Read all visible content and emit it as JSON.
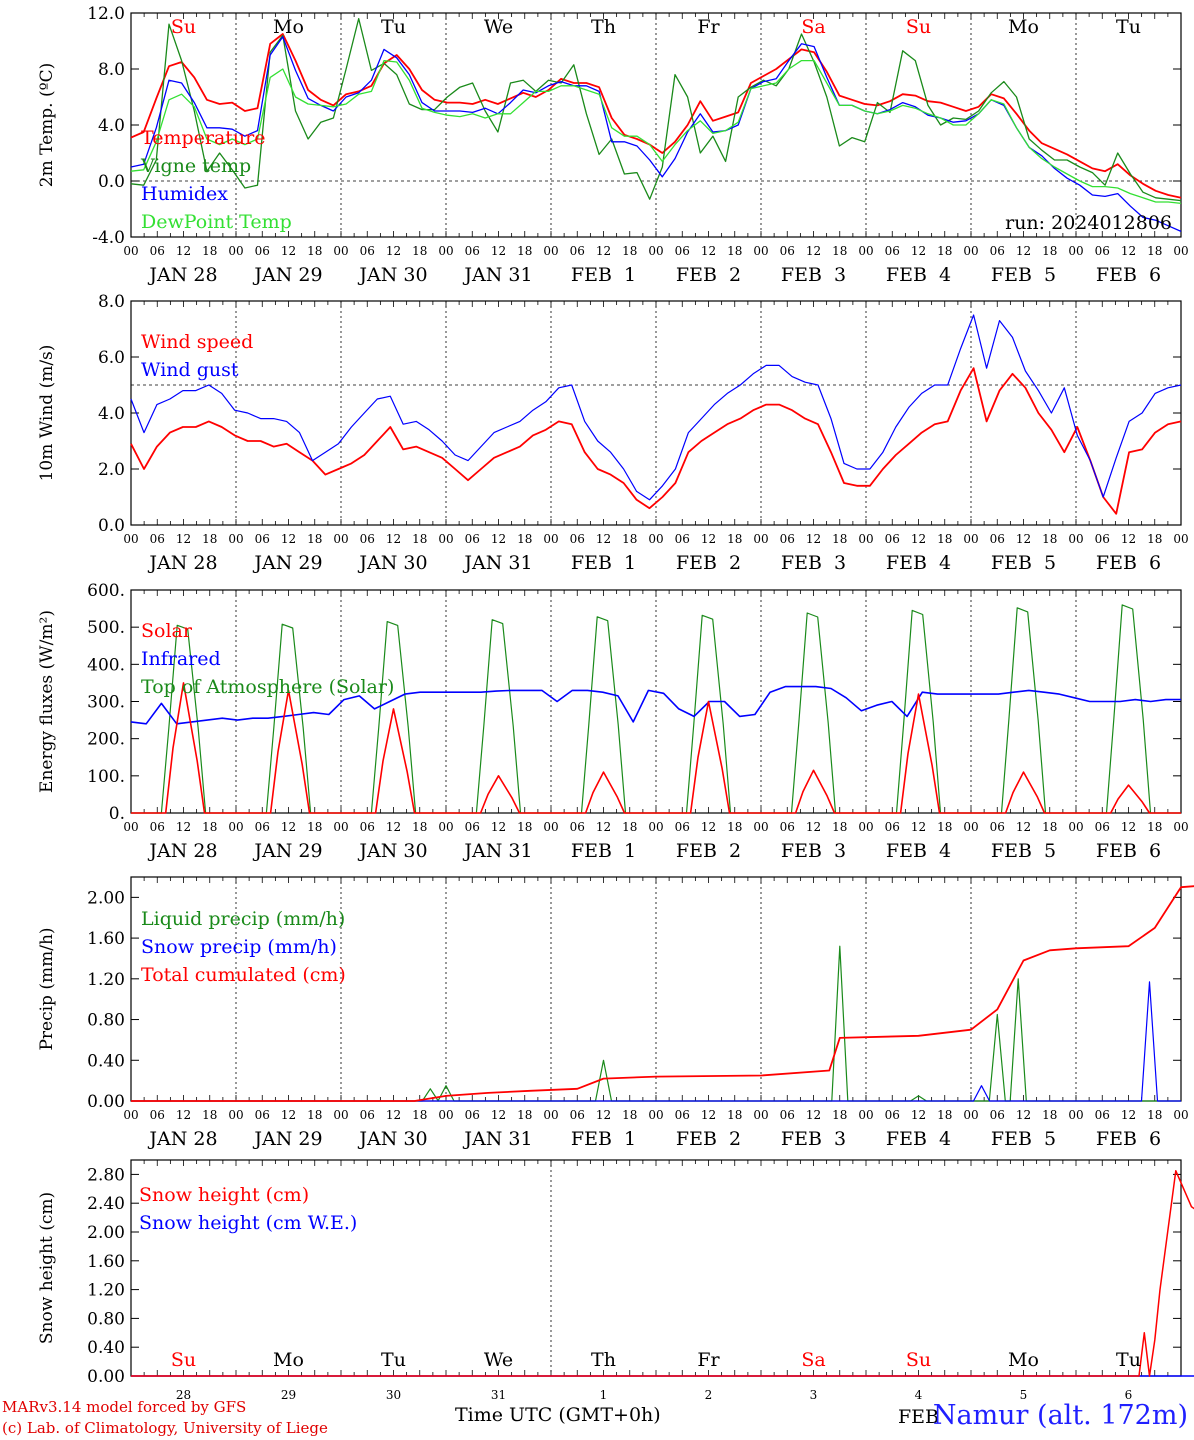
{
  "colors": {
    "red": "#ff0000",
    "green": "#1a8a1a",
    "blue": "#0000ff",
    "lightgreen": "#33e033",
    "darkred": "#ff0000",
    "credit": "#e00000",
    "location": "#2020ff"
  },
  "time_axis": {
    "hour_ticks": [
      "00",
      "06",
      "12",
      "18"
    ],
    "date_labels": [
      "JAN 28",
      "JAN 29",
      "JAN 30",
      "JAN 31",
      "FEB  1",
      "FEB  2",
      "FEB  3",
      "FEB  4",
      "FEB  5",
      "FEB  6"
    ],
    "weekdays": [
      "Su",
      "Mo",
      "Tu",
      "We",
      "Th",
      "Fr",
      "Sa",
      "Su",
      "Mo",
      "Tu"
    ],
    "weekend_flags": [
      true,
      false,
      false,
      false,
      false,
      false,
      true,
      true,
      false,
      false
    ],
    "day_numbers": [
      "28",
      "29",
      "30",
      "31",
      "1",
      "2",
      "3",
      "4",
      "5",
      "6"
    ],
    "feb_label": "FEB"
  },
  "footer": {
    "model_line": "MARv3.14 model forced by GFS",
    "credit_line": "(c) Lab. of Climatology, University of Liege",
    "axis_title": "Time UTC (GMT+0h)",
    "location": "Namur (alt. 172m)"
  },
  "chart_data": [
    {
      "type": "line",
      "ylabel": "2m Temp. (ºC)",
      "ylim": [
        -4,
        12
      ],
      "yticks": [
        "12.0",
        "8.0",
        "4.0",
        "0.0",
        "-4.0"
      ],
      "annotation": "run: 2024012806",
      "reference_line": 0,
      "x": "hours since JAN 28 00 UTC, 3-hourly",
      "series": [
        {
          "name": "Temperature",
          "color": "#ff0000",
          "values": [
            3.1,
            3.5,
            5.9,
            8.2,
            8.5,
            7.4,
            5.8,
            5.5,
            5.6,
            5.0,
            5.2,
            9.8,
            10.5,
            8.6,
            6.5,
            5.8,
            5.4,
            6.2,
            6.4,
            6.8,
            8.4,
            9.0,
            8.0,
            6.5,
            5.8,
            5.6,
            5.6,
            5.5,
            5.8,
            5.5,
            5.9,
            6.3,
            6.0,
            6.5,
            7.3,
            7.0,
            7.0,
            6.7,
            4.5,
            3.3,
            3.0,
            2.6,
            2.0,
            2.8,
            4.0,
            5.7,
            4.3,
            4.6,
            4.9,
            7.0,
            7.5,
            8.0,
            8.7,
            9.4,
            9.2,
            7.8,
            6.1,
            5.8,
            5.5,
            5.4,
            5.7,
            6.2,
            6.1,
            5.7,
            5.6,
            5.3,
            5.0,
            5.3,
            6.2,
            5.9,
            4.8,
            3.6,
            2.7,
            2.3,
            1.9,
            1.4,
            0.9,
            0.7,
            1.2,
            0.4,
            -0.2,
            -0.7,
            -1.0,
            -1.2
          ]
        },
        {
          "name": "Vigne temp",
          "color": "#1a8a1a",
          "values": [
            -0.2,
            -0.3,
            1.5,
            11.2,
            8.6,
            5.0,
            0.7,
            2.0,
            0.8,
            -0.5,
            -0.3,
            9.2,
            10.4,
            5.0,
            3.0,
            4.2,
            4.5,
            8.0,
            11.6,
            7.9,
            8.4,
            7.6,
            5.5,
            5.1,
            5.1,
            6.0,
            6.7,
            7.0,
            5.0,
            3.5,
            7.0,
            7.2,
            6.4,
            7.2,
            7.0,
            8.3,
            4.8,
            1.9,
            3.0,
            0.5,
            0.6,
            -1.3,
            1.0,
            7.6,
            6.0,
            2.0,
            3.2,
            1.4,
            6.0,
            6.7,
            7.2,
            6.8,
            8.0,
            10.5,
            8.5,
            6.0,
            2.5,
            3.1,
            2.8,
            5.6,
            4.9,
            9.3,
            8.6,
            5.4,
            4.0,
            4.5,
            4.4,
            5.0,
            6.3,
            7.1,
            6.0,
            3.0,
            2.2,
            1.5,
            1.5,
            1.0,
            0.6,
            -0.3,
            2.0,
            0.5,
            -0.8,
            -1.2,
            -1.3,
            -1.4
          ]
        },
        {
          "name": "Humidex",
          "color": "#0000ff",
          "values": [
            1.0,
            1.2,
            3.8,
            7.2,
            7.0,
            5.6,
            3.8,
            3.8,
            3.7,
            3.2,
            3.6,
            9.0,
            10.3,
            7.9,
            5.9,
            5.4,
            5.0,
            6.0,
            6.3,
            7.2,
            9.4,
            8.8,
            7.6,
            5.6,
            5.0,
            5.0,
            5.0,
            4.9,
            5.2,
            4.8,
            5.6,
            6.5,
            6.3,
            6.8,
            7.1,
            6.8,
            6.8,
            6.4,
            2.8,
            2.8,
            2.5,
            1.5,
            0.3,
            1.6,
            3.5,
            4.8,
            3.5,
            3.6,
            4.0,
            6.6,
            7.1,
            7.3,
            8.6,
            9.8,
            9.6,
            7.4,
            5.4,
            5.4,
            5.0,
            4.8,
            5.1,
            5.6,
            5.3,
            4.7,
            4.5,
            4.2,
            4.3,
            4.8,
            5.8,
            5.4,
            3.8,
            2.4,
            1.8,
            0.9,
            0.2,
            -0.3,
            -1.0,
            -1.1,
            -0.9,
            -1.8,
            -2.6,
            -2.8,
            -3.2,
            -3.6
          ]
        },
        {
          "name": "DewPoint Temp",
          "color": "#33e033",
          "values": [
            0.7,
            0.8,
            2.8,
            5.8,
            6.2,
            5.3,
            3.0,
            2.6,
            3.0,
            2.6,
            3.0,
            7.4,
            8.0,
            6.0,
            5.5,
            5.4,
            5.3,
            5.5,
            6.2,
            6.4,
            8.6,
            8.5,
            7.2,
            5.2,
            4.9,
            4.7,
            4.6,
            4.8,
            4.5,
            4.8,
            4.8,
            5.6,
            6.4,
            6.4,
            6.8,
            6.8,
            6.5,
            6.2,
            3.8,
            3.2,
            3.2,
            2.6,
            1.4,
            2.6,
            3.6,
            4.3,
            3.4,
            3.6,
            4.2,
            6.6,
            6.8,
            7.0,
            8.0,
            8.6,
            8.6,
            7.0,
            5.4,
            5.4,
            5.0,
            4.8,
            5.0,
            5.4,
            5.2,
            4.8,
            4.5,
            4.0,
            4.0,
            4.8,
            5.8,
            5.5,
            3.8,
            2.4,
            1.6,
            1.0,
            0.5,
            0.0,
            -0.4,
            -0.4,
            -0.5,
            -0.9,
            -1.2,
            -1.5,
            -1.5,
            -1.6
          ]
        }
      ]
    },
    {
      "type": "line",
      "ylabel": "10m Wind (m/s)",
      "ylim": [
        0,
        8
      ],
      "yticks": [
        "8.0",
        "6.0",
        "4.0",
        "2.0",
        "0.0"
      ],
      "reference_line": 5,
      "series": [
        {
          "name": "Wind speed",
          "color": "#ff0000",
          "values": [
            2.9,
            2.0,
            2.8,
            3.3,
            3.5,
            3.5,
            3.7,
            3.5,
            3.2,
            3.0,
            3.0,
            2.8,
            2.9,
            2.6,
            2.3,
            1.8,
            2.0,
            2.2,
            2.5,
            3.0,
            3.5,
            2.7,
            2.8,
            2.6,
            2.4,
            2.0,
            1.6,
            2.0,
            2.4,
            2.6,
            2.8,
            3.2,
            3.4,
            3.7,
            3.6,
            2.6,
            2.0,
            1.8,
            1.5,
            0.9,
            0.6,
            1.0,
            1.5,
            2.6,
            3.0,
            3.3,
            3.6,
            3.8,
            4.1,
            4.3,
            4.3,
            4.1,
            3.8,
            3.6,
            2.6,
            1.5,
            1.4,
            1.4,
            2.0,
            2.5,
            2.9,
            3.3,
            3.6,
            3.7,
            4.8,
            5.6,
            3.7,
            4.8,
            5.4,
            4.9,
            4.0,
            3.4,
            2.6,
            3.5,
            2.3,
            1.0,
            0.4,
            2.6,
            2.7,
            3.3,
            3.6,
            3.7
          ]
        },
        {
          "name": "Wind gust",
          "color": "#0000ff",
          "values": [
            4.5,
            3.3,
            4.3,
            4.5,
            4.8,
            4.8,
            5.0,
            4.7,
            4.1,
            4.0,
            3.8,
            3.8,
            3.7,
            3.3,
            2.3,
            2.6,
            2.9,
            3.5,
            4.0,
            4.5,
            4.6,
            3.6,
            3.7,
            3.4,
            3.0,
            2.5,
            2.3,
            2.8,
            3.3,
            3.5,
            3.7,
            4.1,
            4.4,
            4.9,
            5.0,
            3.7,
            3.0,
            2.6,
            2.0,
            1.2,
            0.9,
            1.4,
            2.0,
            3.3,
            3.8,
            4.3,
            4.7,
            5.0,
            5.4,
            5.7,
            5.7,
            5.3,
            5.1,
            5.0,
            3.8,
            2.2,
            2.0,
            2.0,
            2.6,
            3.5,
            4.2,
            4.7,
            5.0,
            5.0,
            6.3,
            7.5,
            5.6,
            7.3,
            6.7,
            5.5,
            4.8,
            4.0,
            4.9,
            3.2,
            2.3,
            1.0,
            2.4,
            3.7,
            4.0,
            4.7,
            4.9,
            5.0
          ]
        }
      ]
    },
    {
      "type": "line",
      "ylabel": "Energy fluxes (W/m²)",
      "ylim": [
        0,
        600
      ],
      "yticks": [
        "600.",
        "500.",
        "400.",
        "300.",
        "200.",
        "100.",
        "0."
      ],
      "series": [
        {
          "name": "Solar",
          "color": "#ff0000",
          "peaks": [
            350,
            330,
            280,
            100,
            110,
            300,
            115,
            320,
            110,
            75
          ]
        },
        {
          "name": "Infrared",
          "color": "#0000ff",
          "values": [
            245,
            240,
            295,
            240,
            245,
            250,
            255,
            250,
            255,
            255,
            260,
            265,
            270,
            265,
            305,
            315,
            280,
            300,
            320,
            325,
            325,
            325,
            325,
            325,
            328,
            330,
            330,
            330,
            300,
            330,
            330,
            325,
            315,
            245,
            330,
            322,
            280,
            260,
            300,
            300,
            260,
            265,
            325,
            340,
            340,
            340,
            335,
            310,
            275,
            290,
            300,
            260,
            325,
            320,
            320,
            320,
            320,
            320,
            325,
            330,
            325,
            320,
            310,
            300,
            300,
            300,
            305,
            300,
            305,
            305
          ]
        },
        {
          "name": "Top of Atmosphere (Solar)",
          "color": "#1a8a1a",
          "peaks": [
            505,
            508,
            515,
            520,
            528,
            532,
            538,
            545,
            552,
            560
          ]
        }
      ]
    },
    {
      "type": "line",
      "ylabel": "Precip (mm/h)",
      "ylim": [
        0,
        2.2
      ],
      "yticks": [
        "2.00",
        "1.60",
        "1.20",
        "0.80",
        "0.40",
        "0.00"
      ],
      "series": [
        {
          "name": "Liquid precip (mm/h)",
          "color": "#1a8a1a",
          "spikes": [
            [
              2.85,
              0.12
            ],
            [
              3.0,
              0.15
            ],
            [
              4.5,
              0.4
            ],
            [
              6.75,
              1.52
            ],
            [
              8.25,
              0.85
            ],
            [
              8.45,
              1.2
            ],
            [
              7.5,
              0.05
            ]
          ]
        },
        {
          "name": "Snow precip (mm/h)",
          "color": "#0000ff",
          "spikes": [
            [
              8.1,
              0.15
            ],
            [
              9.7,
              1.17
            ]
          ]
        },
        {
          "name": "Total cumulated (cm)",
          "color": "#ff0000",
          "points": [
            [
              0,
              0
            ],
            [
              2.7,
              0
            ],
            [
              3.0,
              0.05
            ],
            [
              3.4,
              0.08
            ],
            [
              3.8,
              0.1
            ],
            [
              4.25,
              0.12
            ],
            [
              4.5,
              0.22
            ],
            [
              5,
              0.24
            ],
            [
              6,
              0.25
            ],
            [
              6.65,
              0.3
            ],
            [
              6.75,
              0.62
            ],
            [
              7.5,
              0.64
            ],
            [
              8.0,
              0.7
            ],
            [
              8.25,
              0.9
            ],
            [
              8.5,
              1.38
            ],
            [
              8.75,
              1.48
            ],
            [
              9,
              1.5
            ],
            [
              9.5,
              1.52
            ],
            [
              9.75,
              1.7
            ],
            [
              10,
              2.1
            ],
            [
              10.25,
              2.12
            ]
          ]
        }
      ]
    },
    {
      "type": "line",
      "ylabel": "Snow height (cm)",
      "ylim": [
        0,
        3.0
      ],
      "yticks": [
        "2.80",
        "2.40",
        "2.00",
        "1.60",
        "1.20",
        "0.80",
        "0.40",
        "0.00"
      ],
      "series": [
        {
          "name": "Snow height (cm)",
          "color": "#ff0000",
          "points": [
            [
              0,
              0
            ],
            [
              9.6,
              0
            ],
            [
              9.65,
              0.6
            ],
            [
              9.7,
              0
            ],
            [
              9.75,
              0.5
            ],
            [
              9.8,
              1.2
            ],
            [
              9.95,
              2.85
            ],
            [
              10.1,
              2.35
            ],
            [
              10.25,
              2.2
            ]
          ]
        },
        {
          "name": "Snow height (cm W.E.)",
          "color": "#0000ff",
          "points": [
            [
              0,
              0
            ],
            [
              10.25,
              0
            ]
          ]
        }
      ]
    }
  ]
}
